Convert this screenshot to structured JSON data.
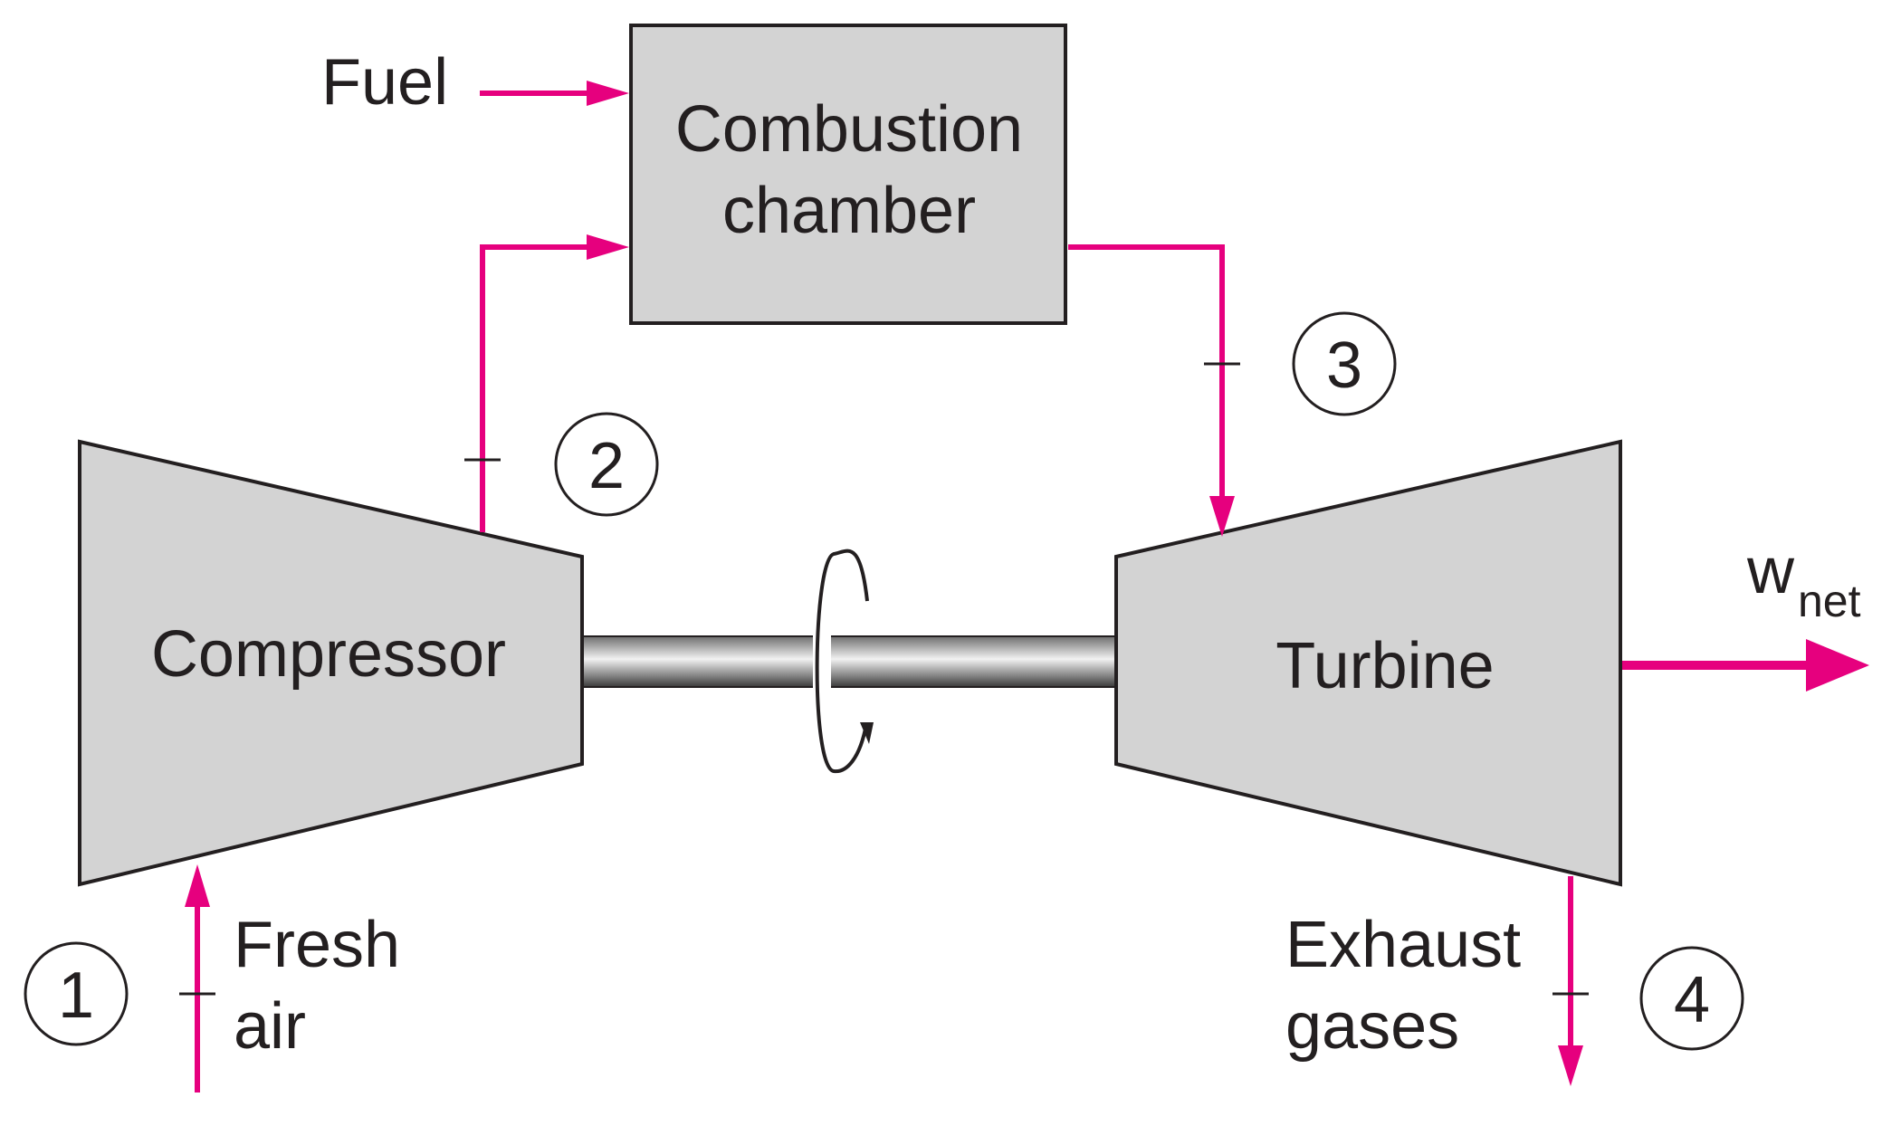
{
  "components": {
    "compressor": "Compressor",
    "turbine": "Turbine",
    "combustion_line1": "Combustion",
    "combustion_line2": "chamber"
  },
  "streams": {
    "fuel": "Fuel",
    "fresh_air_line1": "Fresh",
    "fresh_air_line2": "air",
    "exhaust_line1": "Exhaust",
    "exhaust_line2": "gases",
    "work_main": "w",
    "work_sub": "net"
  },
  "states": [
    "1",
    "2",
    "3",
    "4"
  ],
  "colors": {
    "flow": "#e6007e",
    "component_fill": "#d3d3d3",
    "outline": "#231f20"
  }
}
